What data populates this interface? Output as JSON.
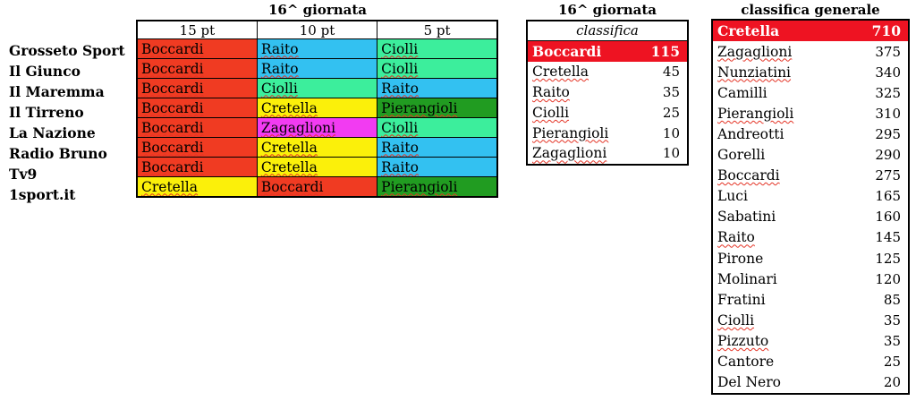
{
  "colors": {
    "highlight_red": "#ee1322",
    "cell_red": "#f03b22",
    "cell_cyan": "#33c1f1",
    "cell_green": "#3cee9c",
    "cell_yellow": "#fbf00a",
    "cell_magenta": "#f23bf2",
    "cell_darkgreen": "#219c21",
    "border": "#000000",
    "squiggle": "#e43325"
  },
  "left_table": {
    "title": "16^ giornata",
    "headers": [
      "15 pt",
      "10 pt",
      "5 pt"
    ],
    "rows": [
      {
        "source": "Grosseto Sport",
        "picks": [
          {
            "name": "Boccardi",
            "color": "#f03b22",
            "squiggle": true
          },
          {
            "name": "Raito",
            "color": "#33c1f1",
            "squiggle": true
          },
          {
            "name": "Ciolli",
            "color": "#3cee9c",
            "squiggle": true
          }
        ]
      },
      {
        "source": "Il Giunco",
        "picks": [
          {
            "name": "Boccardi",
            "color": "#f03b22",
            "squiggle": true
          },
          {
            "name": "Raito",
            "color": "#33c1f1",
            "squiggle": true
          },
          {
            "name": "Ciolli",
            "color": "#3cee9c",
            "squiggle": true
          }
        ]
      },
      {
        "source": "Il Maremma",
        "picks": [
          {
            "name": "Boccardi",
            "color": "#f03b22",
            "squiggle": true
          },
          {
            "name": "Ciolli",
            "color": "#3cee9c",
            "squiggle": true
          },
          {
            "name": "Raito",
            "color": "#33c1f1",
            "squiggle": true
          }
        ]
      },
      {
        "source": "Il Tirreno",
        "picks": [
          {
            "name": "Boccardi",
            "color": "#f03b22",
            "squiggle": true
          },
          {
            "name": "Cretella",
            "color": "#fbf00a",
            "squiggle": true
          },
          {
            "name": "Pierangioli",
            "color": "#219c21",
            "squiggle": true
          }
        ]
      },
      {
        "source": "La Nazione",
        "picks": [
          {
            "name": "Boccardi",
            "color": "#f03b22",
            "squiggle": true
          },
          {
            "name": "Zagaglioni",
            "color": "#f23bf2",
            "squiggle": true
          },
          {
            "name": "Ciolli",
            "color": "#3cee9c",
            "squiggle": true
          }
        ]
      },
      {
        "source": "Radio Bruno",
        "picks": [
          {
            "name": "Boccardi",
            "color": "#f03b22",
            "squiggle": true
          },
          {
            "name": "Cretella",
            "color": "#fbf00a",
            "squiggle": true
          },
          {
            "name": "Raito",
            "color": "#33c1f1",
            "squiggle": true
          }
        ]
      },
      {
        "source": "Tv9",
        "picks": [
          {
            "name": "Boccardi",
            "color": "#f03b22",
            "squiggle": true
          },
          {
            "name": "Cretella",
            "color": "#fbf00a",
            "squiggle": true
          },
          {
            "name": "Raito",
            "color": "#33c1f1",
            "squiggle": true
          }
        ]
      },
      {
        "source": "1sport.it",
        "picks": [
          {
            "name": "Cretella",
            "color": "#fbf00a",
            "squiggle": true
          },
          {
            "name": "Boccardi",
            "color": "#f03b22",
            "squiggle": true
          },
          {
            "name": "Pierangioli",
            "color": "#219c21",
            "squiggle": true
          }
        ]
      }
    ]
  },
  "middle_table": {
    "title": "16^ giornata",
    "header": "classifica",
    "rows": [
      {
        "name": "Boccardi",
        "points": 115,
        "highlight": true,
        "squiggle": false
      },
      {
        "name": "Cretella",
        "points": 45,
        "highlight": false,
        "squiggle": true
      },
      {
        "name": "Raito",
        "points": 35,
        "highlight": false,
        "squiggle": true
      },
      {
        "name": "Ciolli",
        "points": 25,
        "highlight": false,
        "squiggle": true
      },
      {
        "name": "Pierangioli",
        "points": 10,
        "highlight": false,
        "squiggle": true
      },
      {
        "name": "Zagaglioni",
        "points": 10,
        "highlight": false,
        "squiggle": true
      }
    ]
  },
  "right_table": {
    "title": "classifica generale",
    "rows": [
      {
        "name": "Cretella",
        "points": 710,
        "highlight": true,
        "squiggle": false
      },
      {
        "name": "Zagaglioni",
        "points": 375,
        "highlight": false,
        "squiggle": true
      },
      {
        "name": "Nunziatini",
        "points": 340,
        "highlight": false,
        "squiggle": true
      },
      {
        "name": "Camilli",
        "points": 325,
        "highlight": false,
        "squiggle": false
      },
      {
        "name": "Pierangioli",
        "points": 310,
        "highlight": false,
        "squiggle": true
      },
      {
        "name": "Andreotti",
        "points": 295,
        "highlight": false,
        "squiggle": false
      },
      {
        "name": "Gorelli",
        "points": 290,
        "highlight": false,
        "squiggle": false
      },
      {
        "name": "Boccardi",
        "points": 275,
        "highlight": false,
        "squiggle": true
      },
      {
        "name": "Luci",
        "points": 165,
        "highlight": false,
        "squiggle": false
      },
      {
        "name": "Sabatini",
        "points": 160,
        "highlight": false,
        "squiggle": false
      },
      {
        "name": "Raito",
        "points": 145,
        "highlight": false,
        "squiggle": true
      },
      {
        "name": "Pirone",
        "points": 125,
        "highlight": false,
        "squiggle": false
      },
      {
        "name": "Molinari",
        "points": 120,
        "highlight": false,
        "squiggle": false
      },
      {
        "name": "Fratini",
        "points": 85,
        "highlight": false,
        "squiggle": false
      },
      {
        "name": "Ciolli",
        "points": 35,
        "highlight": false,
        "squiggle": true
      },
      {
        "name": "Pizzuto",
        "points": 35,
        "highlight": false,
        "squiggle": true
      },
      {
        "name": "Cantore",
        "points": 25,
        "highlight": false,
        "squiggle": false
      },
      {
        "name": "Del Nero",
        "points": 20,
        "highlight": false,
        "squiggle": false
      }
    ]
  }
}
